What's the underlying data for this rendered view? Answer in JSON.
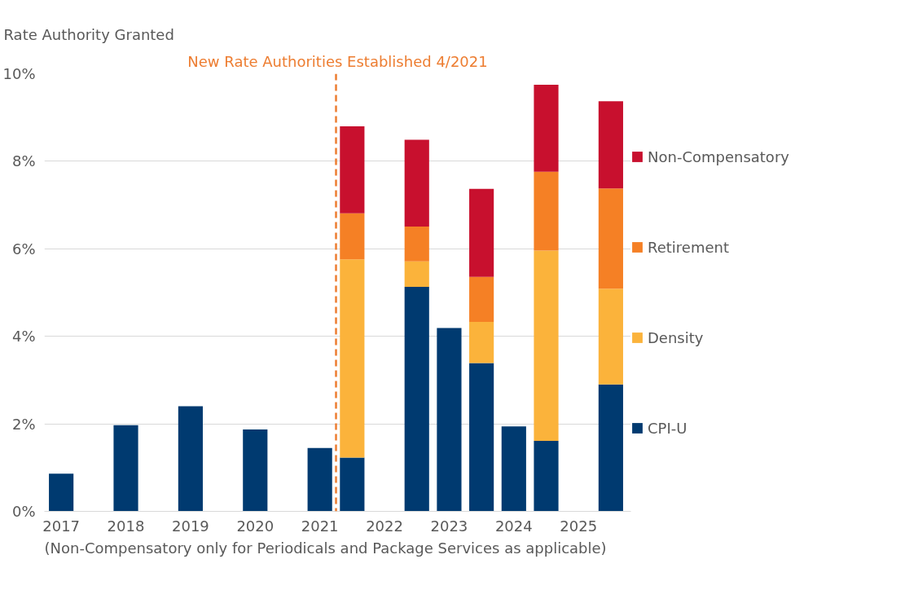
{
  "chart_data": {
    "type": "bar",
    "stacked": true,
    "ylabel": "Rate Authority Granted",
    "x": [
      2017,
      2018,
      2019,
      2020,
      2021,
      2021.5,
      2022.5,
      2023,
      2023.5,
      2024,
      2024.5,
      2025.5
    ],
    "series": [
      {
        "name": "CPI-U",
        "color": "#003a70",
        "values": [
          0.86,
          1.97,
          2.4,
          1.87,
          1.45,
          1.23,
          5.13,
          4.19,
          3.39,
          1.94,
          1.61,
          2.9
        ]
      },
      {
        "name": "Density",
        "color": "#fbb33b",
        "values": [
          null,
          null,
          null,
          null,
          null,
          4.53,
          0.58,
          null,
          0.94,
          null,
          4.35,
          2.19
        ]
      },
      {
        "name": "Retirement",
        "color": "#f58025",
        "values": [
          null,
          null,
          null,
          null,
          null,
          1.05,
          0.8,
          null,
          1.03,
          null,
          1.8,
          2.29
        ]
      },
      {
        "name": "Non-Compensatory",
        "color": "#c8102e",
        "values": [
          null,
          null,
          null,
          null,
          null,
          1.99,
          1.98,
          null,
          2.01,
          null,
          1.99,
          1.99
        ]
      }
    ],
    "xlim": [
      2016.74,
      2025.81
    ],
    "xticks": [
      2017,
      2018,
      2019,
      2020,
      2021,
      2022,
      2023,
      2024,
      2025
    ],
    "ylim": [
      0,
      10
    ],
    "yticks": [
      {
        "value": 0,
        "label": "0%"
      },
      {
        "value": 2,
        "label": "2%"
      },
      {
        "value": 4,
        "label": "4%"
      },
      {
        "value": 6,
        "label": "6%"
      },
      {
        "value": 8,
        "label": "8%"
      },
      {
        "value": 10,
        "label": "10%"
      }
    ],
    "ref_lines": [
      {
        "axis": "x",
        "value": 2021.25,
        "label": "New Rate Authorities Established 4/2021",
        "color": "#ed7d31",
        "line_style": "dashed"
      }
    ],
    "annotations": [
      "(Non-Compensatory only for Periodicals and Package Services as applicable)"
    ],
    "grid": "y",
    "legend": "right"
  }
}
